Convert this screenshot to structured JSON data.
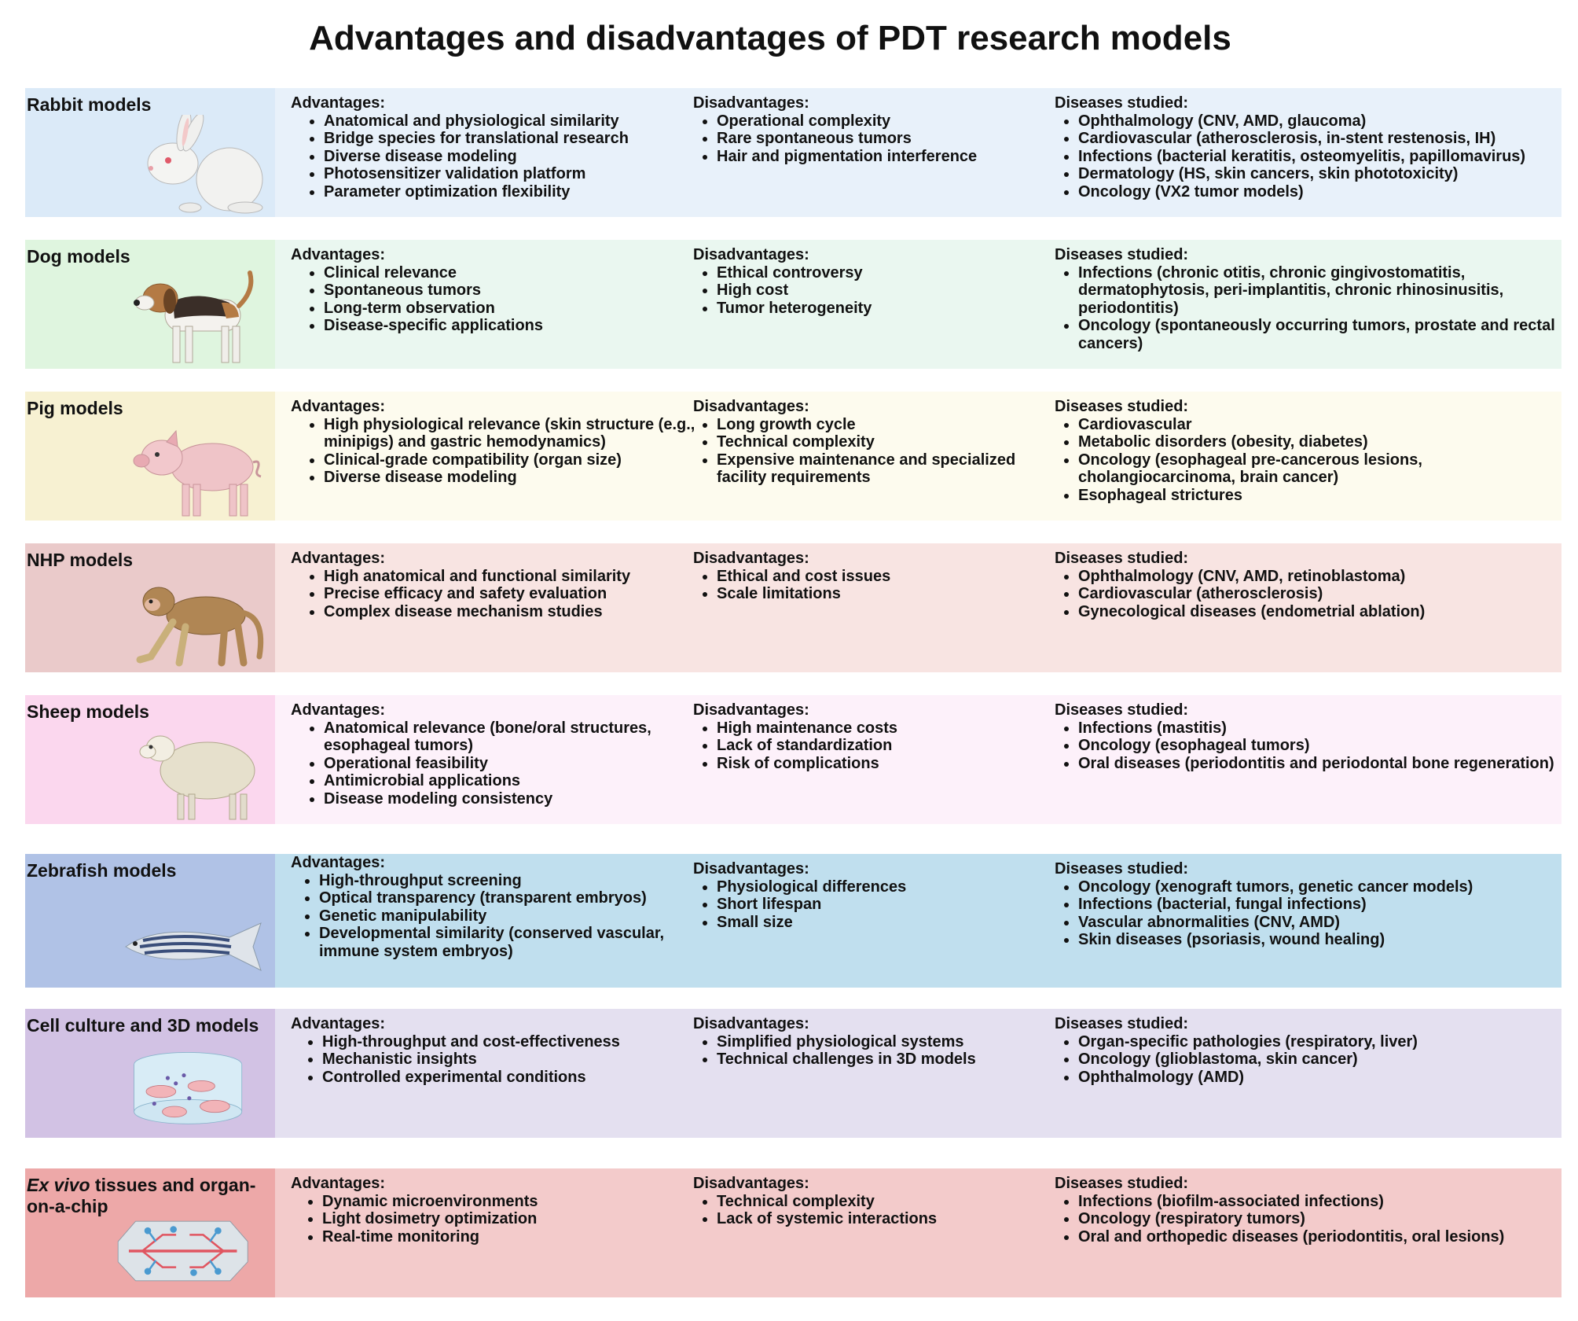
{
  "title": "Advantages and disadvantages of PDT research models",
  "labels": {
    "advantages": "Advantages:",
    "disadvantages": "Disadvantages:",
    "diseases": "Diseases studied:"
  },
  "colors": {
    "rabbit": [
      "#dbeaf8",
      "#e8f1fa"
    ],
    "dog": [
      "#dff5df",
      "#eaf7f0"
    ],
    "pig": [
      "#f7f1d2",
      "#fdfbee"
    ],
    "nhp": [
      "#eacaca",
      "#f8e4e2"
    ],
    "sheep": [
      "#fbd7ee",
      "#fdf1fa"
    ],
    "zebrafish": [
      "#b0c2e6",
      "#c0dfee"
    ],
    "cell": [
      "#d2c2e4",
      "#e4e0f0"
    ],
    "exvivo": [
      "#eda8a8",
      "#f3cbcb"
    ]
  },
  "models": [
    {
      "name": "Rabbit models",
      "icon": "rabbit-icon",
      "advantages": [
        "Anatomical and physiological similarity",
        "Bridge species for translational research",
        "Diverse disease modeling",
        "Photosensitizer validation platform",
        "Parameter optimization flexibility"
      ],
      "disadvantages": [
        "Operational complexity",
        "Rare spontaneous tumors",
        "Hair and pigmentation interference"
      ],
      "diseases": [
        "Ophthalmology (CNV, AMD, glaucoma)",
        "Cardiovascular (atherosclerosis, in-stent restenosis, IH)",
        "Infections (bacterial keratitis, osteomyelitis, papillomavirus)",
        "Dermatology (HS, skin cancers, skin phototoxicity)",
        "Oncology (VX2 tumor models)"
      ]
    },
    {
      "name": "Dog models",
      "icon": "dog-icon",
      "advantages": [
        "Clinical relevance",
        "Spontaneous tumors",
        "Long-term observation",
        "Disease-specific applications"
      ],
      "disadvantages": [
        "Ethical controversy",
        "High cost",
        "Tumor heterogeneity"
      ],
      "diseases": [
        "Infections (chronic otitis, chronic gingivostomatitis, dermatophytosis, peri-implantitis, chronic rhinosinusitis, periodontitis)",
        "Oncology (spontaneously occurring tumors, prostate and rectal cancers)"
      ]
    },
    {
      "name": "Pig models",
      "icon": "pig-icon",
      "advantages": [
        "High physiological relevance (skin structure (e.g., minipigs) and gastric hemodynamics)",
        "Clinical-grade compatibility (organ size)",
        "Diverse disease modeling"
      ],
      "disadvantages": [
        "Long growth cycle",
        "Technical complexity",
        "Expensive maintenance and specialized facility requirements"
      ],
      "diseases": [
        "Cardiovascular",
        "Metabolic disorders (obesity, diabetes)",
        "Oncology (esophageal pre-cancerous lesions, cholangiocarcinoma, brain cancer)",
        "Esophageal strictures"
      ]
    },
    {
      "name": "NHP models",
      "icon": "monkey-icon",
      "advantages": [
        "High anatomical and functional similarity",
        "Precise efficacy and safety evaluation",
        "Complex disease mechanism studies"
      ],
      "disadvantages": [
        "Ethical and cost issues",
        "Scale limitations"
      ],
      "diseases": [
        "Ophthalmology (CNV, AMD, retinoblastoma)",
        "Cardiovascular (atherosclerosis)",
        "Gynecological diseases (endometrial ablation)"
      ]
    },
    {
      "name": "Sheep models",
      "icon": "sheep-icon",
      "advantages": [
        "Anatomical relevance (bone/oral structures, esophageal tumors)",
        "Operational feasibility",
        "Antimicrobial applications",
        "Disease modeling consistency"
      ],
      "disadvantages": [
        "High maintenance costs",
        "Lack of standardization",
        "Risk of complications"
      ],
      "diseases": [
        "Infections (mastitis)",
        "Oncology (esophageal tumors)",
        "Oral diseases (periodontitis and periodontal bone regeneration)"
      ]
    },
    {
      "name": "Zebrafish models",
      "icon": "zebrafish-icon",
      "advantages": [
        "High-throughput screening",
        "Optical transparency (transparent embryos)",
        "Genetic manipulability",
        "Developmental similarity (conserved vascular, immune system embryos)"
      ],
      "disadvantages": [
        "Physiological differences",
        "Short lifespan",
        "Small size"
      ],
      "diseases": [
        "Oncology (xenograft tumors, genetic cancer models)",
        "Infections (bacterial, fungal infections)",
        "Vascular abnormalities (CNV, AMD)",
        "Skin diseases (psoriasis, wound healing)"
      ]
    },
    {
      "name": "Cell culture and 3D models",
      "icon": "cell-culture-dish-icon",
      "advantages": [
        "High-throughput and cost-effectiveness",
        "Mechanistic insights",
        "Controlled experimental conditions"
      ],
      "disadvantages": [
        "Simplified physiological systems",
        "Technical challenges in 3D models"
      ],
      "diseases": [
        "Organ-specific pathologies (respiratory, liver)",
        "Oncology (glioblastoma, skin cancer)",
        "Ophthalmology (AMD)"
      ]
    },
    {
      "name_italic": "Ex vivo",
      "name": " tissues and organ-on-a-chip",
      "icon": "organ-on-chip-icon",
      "advantages": [
        "Dynamic microenvironments",
        "Light dosimetry optimization",
        "Real-time monitoring"
      ],
      "disadvantages": [
        "Technical complexity",
        "Lack of systemic interactions"
      ],
      "diseases": [
        "Infections (biofilm-associated infections)",
        "Oncology (respiratory tumors)",
        "Oral and orthopedic diseases (periodontitis, oral lesions)"
      ]
    }
  ]
}
